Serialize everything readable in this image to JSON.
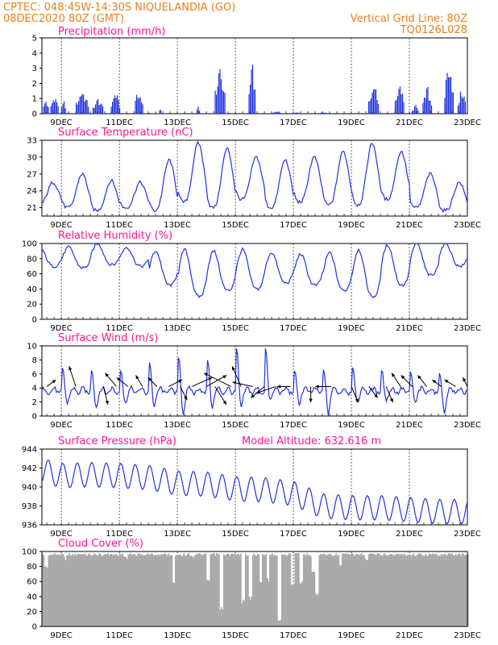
{
  "header": {
    "line1": "CPTEC:  048:45W-14:30S   NIQUELANDIA (GO)",
    "line2": "08DEC2020 80Z (GMT)",
    "vgrid": "Vertical Grid Line: 80Z",
    "code": "TQ0126L028"
  },
  "colors": {
    "header": "#e8801a",
    "title": "#ff1493",
    "series": "#2233dd",
    "cloud": "#aaaaaa",
    "grid": "#000000"
  },
  "chart_data": [
    {
      "type": "bar",
      "title": "Precipitation (mm/h)",
      "ylim": [
        0,
        5
      ],
      "yticks": [
        0,
        1,
        2,
        3,
        4,
        5
      ],
      "xlim": [
        8.33,
        23
      ],
      "xticks": [
        9,
        11,
        13,
        15,
        17,
        19,
        21,
        23
      ],
      "xticklabels": [
        "9DEC",
        "11DEC",
        "13DEC",
        "15DEC",
        "17DEC",
        "19DEC",
        "21DEC",
        "23DEC"
      ],
      "grid": "dashed",
      "events": [
        {
          "x": 8.45,
          "peak": 1.1,
          "width": 0.2
        },
        {
          "x": 8.75,
          "peak": 1.4,
          "width": 0.3
        },
        {
          "x": 9.05,
          "peak": 1.1,
          "width": 0.15
        },
        {
          "x": 9.7,
          "peak": 1.8,
          "width": 0.45
        },
        {
          "x": 10.25,
          "peak": 1.1,
          "width": 0.4
        },
        {
          "x": 10.85,
          "peak": 1.7,
          "width": 0.3
        },
        {
          "x": 11.65,
          "peak": 1.8,
          "width": 0.3
        },
        {
          "x": 12.4,
          "peak": 0.4,
          "width": 0.1
        },
        {
          "x": 13.7,
          "peak": 0.8,
          "width": 0.1
        },
        {
          "x": 14.45,
          "peak": 3.9,
          "width": 0.35
        },
        {
          "x": 15.55,
          "peak": 4.2,
          "width": 0.25
        },
        {
          "x": 16.4,
          "peak": 0.15,
          "width": 0.3
        },
        {
          "x": 17.1,
          "peak": 0.15,
          "width": 0.2
        },
        {
          "x": 18.0,
          "peak": 0.12,
          "width": 0.3
        },
        {
          "x": 19.75,
          "peak": 2.4,
          "width": 0.4
        },
        {
          "x": 20.65,
          "peak": 2.4,
          "width": 0.35
        },
        {
          "x": 21.2,
          "peak": 0.6,
          "width": 0.25
        },
        {
          "x": 21.6,
          "peak": 2.0,
          "width": 0.3
        },
        {
          "x": 22.35,
          "peak": 4.4,
          "width": 0.3
        },
        {
          "x": 22.8,
          "peak": 1.9,
          "width": 0.3
        }
      ]
    },
    {
      "type": "line",
      "title": "Surface Temperature (nC)",
      "ylim": [
        19.5,
        33
      ],
      "yticks": [
        21,
        24,
        27,
        30,
        33
      ],
      "xlim": [
        8.33,
        23
      ],
      "xticks": [
        9,
        11,
        13,
        15,
        17,
        19,
        21,
        23
      ],
      "xticklabels": [
        "9DEC",
        "11DEC",
        "13DEC",
        "15DEC",
        "17DEC",
        "19DEC",
        "21DEC",
        "23DEC"
      ],
      "grid": "dashed",
      "daily_max": [
        25.5,
        27.0,
        25.8,
        25.5,
        29.5,
        32.5,
        31.5,
        30.0,
        29.5,
        30.0,
        31.0,
        32.5,
        31.0,
        27.0,
        25.5
      ],
      "daily_min": [
        21.5,
        21.0,
        20.5,
        21.0,
        20.5,
        22.0,
        21.0,
        22.5,
        21.0,
        22.0,
        21.5,
        21.5,
        22.5,
        21.0,
        20.5
      ]
    },
    {
      "type": "line",
      "title": "Relative Humidity (%)",
      "ylim": [
        0,
        100
      ],
      "yticks": [
        0,
        20,
        40,
        60,
        80,
        100
      ],
      "xlim": [
        8.33,
        23
      ],
      "xticks": [
        9,
        11,
        13,
        15,
        17,
        19,
        21,
        23
      ],
      "xticklabels": [
        "9DEC",
        "11DEC",
        "13DEC",
        "15DEC",
        "17DEC",
        "19DEC",
        "21DEC",
        "23DEC"
      ],
      "grid": "dashed",
      "daily_max": [
        95,
        95,
        100,
        95,
        90,
        92,
        90,
        92,
        88,
        86,
        88,
        92,
        98,
        100,
        100
      ],
      "daily_min": [
        70,
        68,
        72,
        70,
        45,
        30,
        38,
        40,
        48,
        45,
        38,
        30,
        45,
        58,
        70
      ]
    },
    {
      "type": "line",
      "title": "Surface Wind (m/s)",
      "ylim": [
        0,
        10
      ],
      "yticks": [
        0,
        2,
        4,
        6,
        8,
        10
      ],
      "xlim": [
        8.33,
        23
      ],
      "xticks": [
        9,
        11,
        13,
        15,
        17,
        19,
        21,
        23
      ],
      "xticklabels": [
        "9DEC",
        "11DEC",
        "13DEC",
        "15DEC",
        "17DEC",
        "19DEC",
        "21DEC",
        "23DEC"
      ],
      "grid": "dashed",
      "daily_peak": [
        3.5,
        6.5,
        6.5,
        6.5,
        7.5,
        8.5,
        8.0,
        9.5,
        9.5,
        6.0,
        6.5,
        7.0,
        6.5,
        6.0,
        6.0
      ],
      "daily_low": [
        1.0,
        2.0,
        1.5,
        2.0,
        1.5,
        0.5,
        1.5,
        1.5,
        2.5,
        2.0,
        0.5,
        2.0,
        2.5,
        2.0,
        0.5
      ],
      "vectors": [
        {
          "x": 8.5,
          "u": 0.4,
          "v": 0.3
        },
        {
          "x": 9.5,
          "u": -0.3,
          "v": 0.9
        },
        {
          "x": 10.45,
          "u": 0.2,
          "v": -0.8
        },
        {
          "x": 10.9,
          "u": -0.5,
          "v": 0.6
        },
        {
          "x": 11.3,
          "u": -0.5,
          "v": 0.4
        },
        {
          "x": 11.8,
          "u": -0.3,
          "v": 0.5
        },
        {
          "x": 12.3,
          "u": -0.4,
          "v": 0.4
        },
        {
          "x": 12.7,
          "u": 0.6,
          "v": 0.3
        },
        {
          "x": 13.1,
          "u": 0.3,
          "v": -0.6
        },
        {
          "x": 13.5,
          "u": 0.9,
          "v": 0.4
        },
        {
          "x": 14.0,
          "u": 0.9,
          "v": 0.5
        },
        {
          "x": 14.3,
          "u": 0.5,
          "v": -0.8
        },
        {
          "x": 14.85,
          "u": -1.2,
          "v": 0.6
        },
        {
          "x": 15.2,
          "u": -0.4,
          "v": 0.9
        },
        {
          "x": 15.6,
          "u": -0.9,
          "v": 0.2
        },
        {
          "x": 16.0,
          "u": -0.6,
          "v": -0.5
        },
        {
          "x": 16.4,
          "u": -0.9,
          "v": -0.3
        },
        {
          "x": 16.9,
          "u": -0.6,
          "v": 0.0
        },
        {
          "x": 17.6,
          "u": 0.0,
          "v": -0.7
        },
        {
          "x": 18.3,
          "u": -0.7,
          "v": 0.0
        },
        {
          "x": 19.0,
          "u": 0.3,
          "v": -0.7
        },
        {
          "x": 19.6,
          "u": 0.4,
          "v": -0.5
        },
        {
          "x": 20.2,
          "u": 0.3,
          "v": -0.7
        },
        {
          "x": 20.7,
          "u": -0.4,
          "v": 0.6
        },
        {
          "x": 21.1,
          "u": -0.5,
          "v": 0.5
        },
        {
          "x": 21.6,
          "u": -0.4,
          "v": 0.5
        },
        {
          "x": 22.1,
          "u": -0.4,
          "v": 0.3
        },
        {
          "x": 22.6,
          "u": -0.5,
          "v": 0.3
        },
        {
          "x": 23.0,
          "u": -0.2,
          "v": 0.4
        }
      ]
    },
    {
      "type": "line",
      "title": "Surface Pressure (hPa)",
      "annotation": "Model Altitude: 632.616 m",
      "ylim": [
        936,
        944
      ],
      "yticks": [
        936,
        938,
        940,
        942,
        944
      ],
      "xlim": [
        8.33,
        23
      ],
      "xticks": [
        9,
        11,
        13,
        15,
        17,
        19,
        21,
        23
      ],
      "xticklabels": [
        "9DEC",
        "11DEC",
        "13DEC",
        "15DEC",
        "17DEC",
        "19DEC",
        "21DEC",
        "23DEC"
      ],
      "grid": "dashed",
      "daily_mean": [
        942.0,
        941.2,
        941.3,
        941.2,
        941.0,
        940.4,
        940.3,
        939.8,
        939.7,
        939.3,
        938.0,
        937.8,
        937.8,
        937.6,
        937.4
      ],
      "semidiurnal_amplitude": 1.3
    },
    {
      "type": "bar",
      "title": "Cloud Cover (%)",
      "ylim": [
        0,
        100
      ],
      "yticks": [
        0,
        20,
        40,
        60,
        80,
        100
      ],
      "xlim": [
        8.33,
        23
      ],
      "xticks": [
        9,
        11,
        13,
        15,
        17,
        19,
        21,
        23
      ],
      "xticklabels": [
        "9DEC",
        "11DEC",
        "13DEC",
        "15DEC",
        "17DEC",
        "19DEC",
        "21DEC",
        "23DEC"
      ],
      "grid": "dashed",
      "base_value": 98,
      "dips": [
        {
          "x": 8.45,
          "value": 75
        },
        {
          "x": 9.1,
          "value": 88
        },
        {
          "x": 11.2,
          "value": 90
        },
        {
          "x": 12.85,
          "value": 55
        },
        {
          "x": 13.5,
          "value": 90
        },
        {
          "x": 14.05,
          "value": 60
        },
        {
          "x": 14.5,
          "value": 20
        },
        {
          "x": 15.25,
          "value": 30
        },
        {
          "x": 15.5,
          "value": 35
        },
        {
          "x": 15.85,
          "value": 55
        },
        {
          "x": 16.1,
          "value": 60
        },
        {
          "x": 16.5,
          "value": 5
        },
        {
          "x": 16.95,
          "value": 55
        },
        {
          "x": 17.25,
          "value": 55
        },
        {
          "x": 17.65,
          "value": 70
        },
        {
          "x": 17.8,
          "value": 40
        },
        {
          "x": 18.6,
          "value": 80
        },
        {
          "x": 19.5,
          "value": 88
        }
      ]
    }
  ]
}
